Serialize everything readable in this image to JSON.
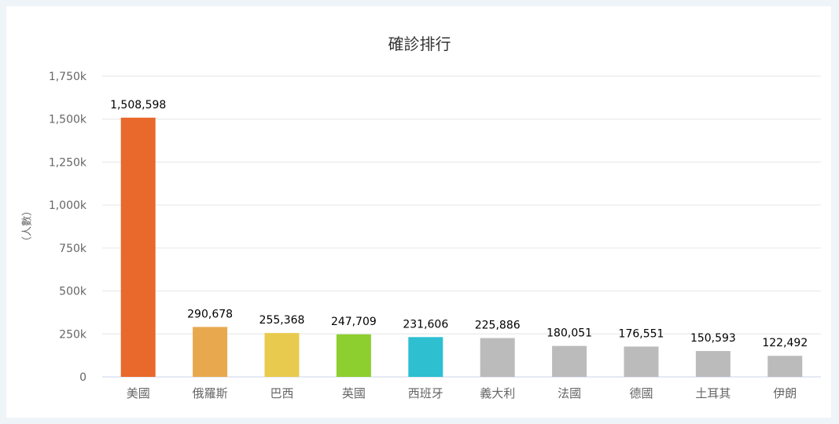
{
  "chart_data": {
    "type": "bar",
    "title": "確診排行",
    "ylabel": "（人數）",
    "xlabel": "",
    "ylim": [
      0,
      1750000
    ],
    "yticks": [
      {
        "value": 0,
        "label": "0"
      },
      {
        "value": 250000,
        "label": "250k"
      },
      {
        "value": 500000,
        "label": "500k"
      },
      {
        "value": 750000,
        "label": "750k"
      },
      {
        "value": 1000000,
        "label": "1,000k"
      },
      {
        "value": 1250000,
        "label": "1,250k"
      },
      {
        "value": 1500000,
        "label": "1,500k"
      },
      {
        "value": 1750000,
        "label": "1,750k"
      }
    ],
    "grid": true,
    "categories": [
      "美國",
      "俄羅斯",
      "巴西",
      "英國",
      "西班牙",
      "義大利",
      "法國",
      "德國",
      "土耳其",
      "伊朗"
    ],
    "values": [
      1508598,
      290678,
      255368,
      247709,
      231606,
      225886,
      180051,
      176551,
      150593,
      122492
    ],
    "value_labels": [
      "1,508,598",
      "290,678",
      "255,368",
      "247,709",
      "231,606",
      "225,886",
      "180,051",
      "176,551",
      "150,593",
      "122,492"
    ],
    "colors": [
      "#e8692b",
      "#e8a94e",
      "#e8ca4e",
      "#8ccf2e",
      "#2ebfd1",
      "#bbbbbb",
      "#bbbbbb",
      "#bbbbbb",
      "#bbbbbb",
      "#bbbbbb"
    ]
  }
}
